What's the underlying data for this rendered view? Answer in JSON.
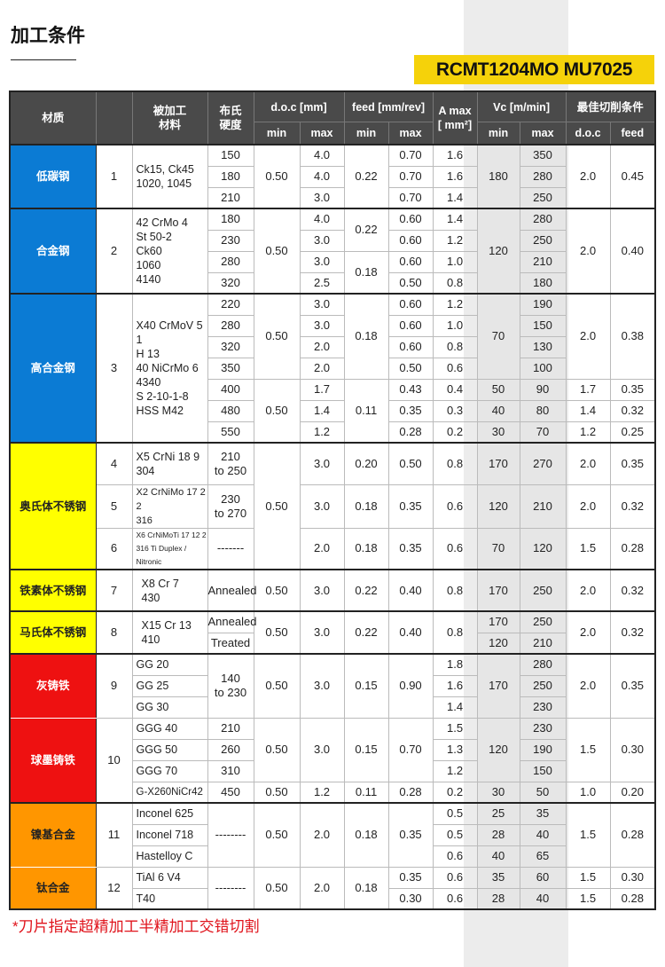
{
  "page": {
    "title": "加工条件",
    "insert_badge": "RCMT1204MO MU7025",
    "footnote": "*刀片指定超精加工半精加工交错切割",
    "accent_color": "#f5d20a"
  },
  "header": {
    "material": "材质",
    "no": "",
    "workpiece": "被加工\n材料",
    "hardness": "布氏\n硬度",
    "doc": "d.o.c [mm]",
    "feed": "feed [mm/rev]",
    "a_max": "A max\n[ mm²]",
    "vc": "Vc [m/min]",
    "best": "最佳切削条件",
    "min": "min",
    "max": "max",
    "best_doc": "d.o.c",
    "best_feed": "feed"
  },
  "colors": {
    "low_carbon": "#0b7bd4",
    "stainless": "#ffff00",
    "cast_iron": "#ee1111",
    "alloys": "#ff9600"
  },
  "g1": {
    "material": "低碳钢",
    "no": "1",
    "grade": "Ck15, Ck45\n1020, 1045",
    "hb": [
      "150",
      "180",
      "210"
    ],
    "doc_min": "0.50",
    "doc_max": [
      "4.0",
      "4.0",
      "3.0"
    ],
    "feed_min": "0.22",
    "feed_max": [
      "0.70",
      "0.70",
      "0.70"
    ],
    "a_max": [
      "1.6",
      "1.6",
      "1.4"
    ],
    "vc_min": "180",
    "vc_max": [
      "350",
      "280",
      "250"
    ],
    "best_doc": "2.0",
    "best_feed": "0.45"
  },
  "g2": {
    "material": "合金钢",
    "no": "2",
    "grade": "42 CrMo 4\nSt 50-2\nCk60\n1060\n4140",
    "hb": [
      "180",
      "230",
      "280",
      "320"
    ],
    "doc_min": "0.50",
    "doc_max": [
      "4.0",
      "3.0",
      "3.0",
      "2.5"
    ],
    "feed_min": [
      "0.22",
      "0.18"
    ],
    "feed_max": [
      "0.60",
      "0.60",
      "0.60",
      "0.50"
    ],
    "a_max": [
      "1.4",
      "1.2",
      "1.0",
      "0.8"
    ],
    "vc_min": "120",
    "vc_max": [
      "280",
      "250",
      "210",
      "180"
    ],
    "best_doc": "2.0",
    "best_feed": "0.40"
  },
  "g3": {
    "material": "高合金钢",
    "no": "3",
    "grade": "X40 CrMoV 5 1\nH 13\n40 NiCrMo 6\n4340\nS 2-10-1-8\nHSS M42",
    "hb": [
      "220",
      "280",
      "320",
      "350",
      "400",
      "480",
      "550"
    ],
    "doc_min": [
      "0.50",
      "0.50"
    ],
    "doc_max": [
      "3.0",
      "3.0",
      "2.0",
      "2.0",
      "1.7",
      "1.4",
      "1.2"
    ],
    "feed_min": [
      "0.18",
      "0.11"
    ],
    "feed_max": [
      "0.60",
      "0.60",
      "0.60",
      "0.50",
      "0.43",
      "0.35",
      "0.28"
    ],
    "a_max": [
      "1.2",
      "1.0",
      "0.8",
      "0.6",
      "0.4",
      "0.3",
      "0.2"
    ],
    "vc_min": [
      "70",
      "50",
      "40",
      "30"
    ],
    "vc_max": [
      "190",
      "150",
      "130",
      "100",
      "90",
      "80",
      "70"
    ],
    "best_doc": [
      "2.0",
      "1.7",
      "1.4",
      "1.2"
    ],
    "best_feed": [
      "0.38",
      "0.35",
      "0.32",
      "0.25"
    ]
  },
  "g4": {
    "material": "奥氏体不锈钢",
    "doc_min": "0.50",
    "rows": [
      {
        "no": "4",
        "grade": "X5 CrNi 18  9\n304",
        "hb": "210\nto 250",
        "doc_max": "3.0",
        "feed_min": "0.20",
        "feed_max": "0.50",
        "a_max": "0.8",
        "vc_min": "170",
        "vc_max": "270",
        "best_doc": "2.0",
        "best_feed": "0.35"
      },
      {
        "no": "5",
        "grade": "X2 CrNiMo 17 2 2\n316",
        "hb": "230\nto 270",
        "doc_max": "3.0",
        "feed_min": "0.18",
        "feed_max": "0.35",
        "a_max": "0.6",
        "vc_min": "120",
        "vc_max": "210",
        "best_doc": "2.0",
        "best_feed": "0.32"
      },
      {
        "no": "6",
        "grade": "X6 CrNiMoTi 17 12 2\n316 Ti Duplex / Nitronic",
        "hb": "-------",
        "doc_max": "2.0",
        "feed_min": "0.18",
        "feed_max": "0.35",
        "a_max": "0.6",
        "vc_min": "70",
        "vc_max": "120",
        "best_doc": "1.5",
        "best_feed": "0.28"
      }
    ]
  },
  "g5": {
    "material": "铁素体不锈钢",
    "no": "7",
    "grade": "X8 Cr 7\n430",
    "hb": "Annealed",
    "doc_min": "0.50",
    "doc_max": "3.0",
    "feed_min": "0.22",
    "feed_max": "0.40",
    "a_max": "0.8",
    "vc_min": "170",
    "vc_max": "250",
    "best_doc": "2.0",
    "best_feed": "0.32"
  },
  "g6": {
    "material": "马氏体不锈钢",
    "no": "8",
    "grade": "X15 Cr 13\n410",
    "hb": [
      "Annealed",
      "Treated"
    ],
    "doc_min": "0.50",
    "doc_max": "3.0",
    "feed_min": "0.22",
    "feed_max": "0.40",
    "a_max": "0.8",
    "vc_min": [
      "170",
      "120"
    ],
    "vc_max": [
      "250",
      "210"
    ],
    "best_doc": "2.0",
    "best_feed": "0.32"
  },
  "g7": {
    "material": "灰铸铁",
    "no": "9",
    "grade": [
      "GG 20",
      "GG 25",
      "GG 30"
    ],
    "hb": "140\nto 230",
    "doc_min": "0.50",
    "doc_max": "3.0",
    "feed_min": "0.15",
    "feed_max": "0.90",
    "a_max": [
      "1.8",
      "1.6",
      "1.4"
    ],
    "vc_min": "170",
    "vc_max": [
      "280",
      "250",
      "230"
    ],
    "best_doc": "2.0",
    "best_feed": "0.35"
  },
  "g8": {
    "material": "球墨铸铁",
    "no": "10",
    "grade": [
      "GGG 40",
      "GGG 50",
      "GGG 70",
      "G-X260NiCr42"
    ],
    "hb": [
      "210",
      "260",
      "310",
      "450"
    ],
    "doc_min": [
      "0.50",
      "0.50"
    ],
    "doc_max": [
      "3.0",
      "1.2"
    ],
    "feed_min": [
      "0.15",
      "0.11"
    ],
    "feed_max": [
      "0.70",
      "0.28"
    ],
    "a_max": [
      "1.5",
      "1.3",
      "1.2",
      "0.2"
    ],
    "vc_min": [
      "120",
      "30"
    ],
    "vc_max": [
      "230",
      "190",
      "150",
      "50"
    ],
    "best_doc": [
      "1.5",
      "1.0"
    ],
    "best_feed": [
      "0.30",
      "0.20"
    ]
  },
  "g9": {
    "material": "镍基合金",
    "no": "11",
    "grade": [
      "Inconel 625",
      "Inconel 718",
      "Hastelloy C"
    ],
    "hb": "--------",
    "doc_min": "0.50",
    "doc_max": "2.0",
    "feed_min": "0.18",
    "feed_max": "0.35",
    "a_max": [
      "0.5",
      "0.5",
      "0.6"
    ],
    "vc_min": [
      "25",
      "28",
      "40"
    ],
    "vc_max": [
      "35",
      "40",
      "65"
    ],
    "best_doc": "1.5",
    "best_feed": "0.28"
  },
  "g10": {
    "material": "钛合金",
    "no": "12",
    "grade": [
      "TiAl 6 V4",
      "T40"
    ],
    "hb": "--------",
    "doc_min": "0.50",
    "doc_max": "2.0",
    "feed_min": "0.18",
    "feed_max": [
      "0.35",
      "0.30"
    ],
    "a_max": [
      "0.6",
      "0.6"
    ],
    "vc_min": [
      "35",
      "28"
    ],
    "vc_max": [
      "60",
      "40"
    ],
    "best_doc": [
      "1.5",
      "1.5"
    ],
    "best_feed": [
      "0.30",
      "0.28"
    ]
  }
}
